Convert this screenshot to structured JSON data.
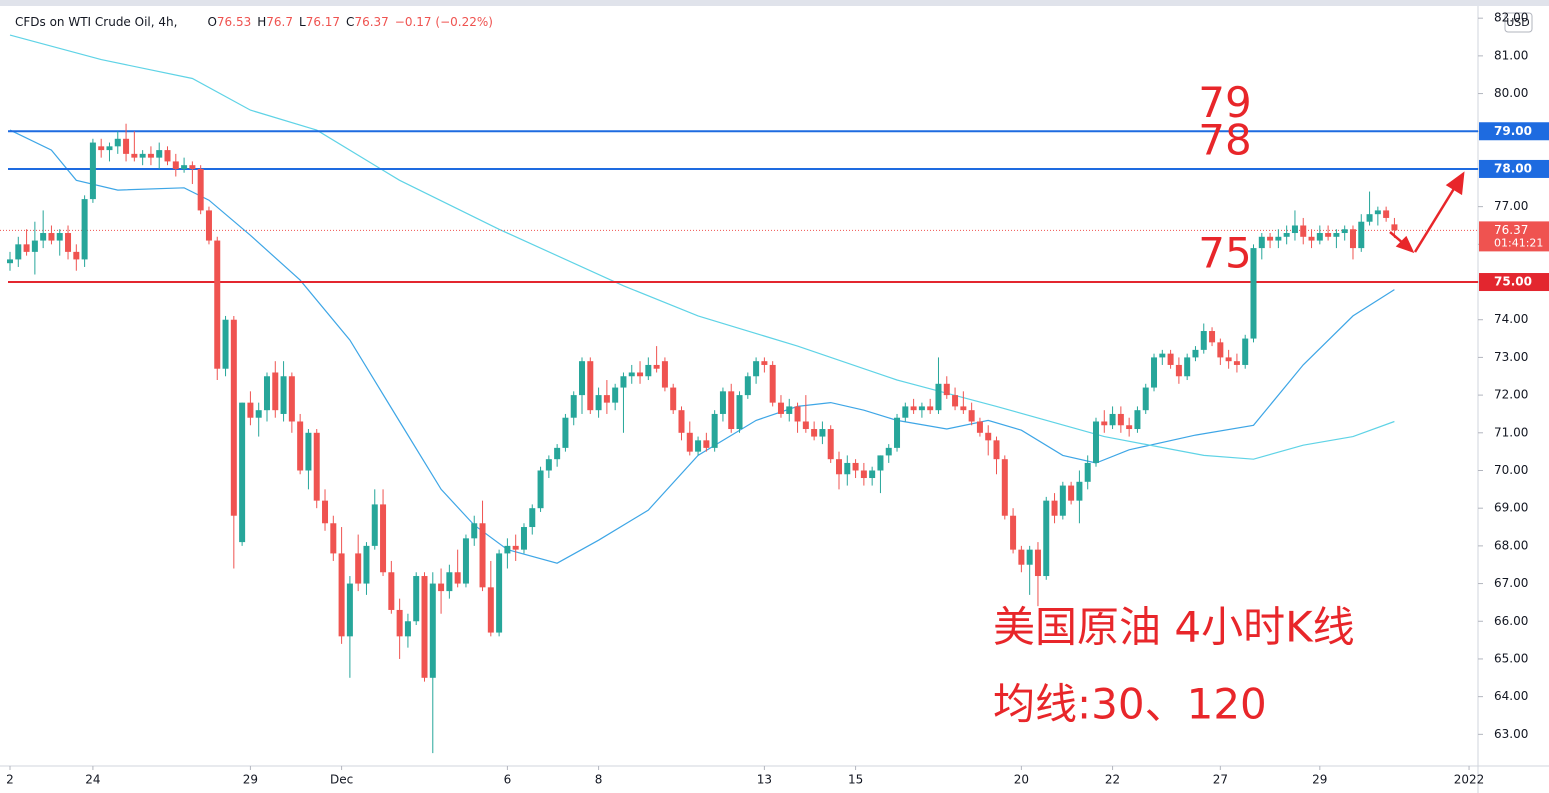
{
  "chart_data": {
    "type": "candlestick",
    "title": "CFDs on WTI Crude Oil, 4h,",
    "ohlc": [
      {
        "label": "O",
        "value": 76.53
      },
      {
        "label": "H",
        "value": 76.7
      },
      {
        "label": "L",
        "value": 76.17
      },
      {
        "label": "C",
        "value": 76.37
      }
    ],
    "change": "−0.17 (−0.22%)",
    "currency": "USD",
    "up_color": "#26a69a",
    "down_color": "#ef5350",
    "ylim": [
      62.16,
      82.27
    ],
    "yticks": [
      {
        "value": 63,
        "label": "63.00"
      },
      {
        "value": 64,
        "label": "64.00"
      },
      {
        "value": 65,
        "label": "65.00"
      },
      {
        "value": 66,
        "label": "66.00"
      },
      {
        "value": 67,
        "label": "67.00"
      },
      {
        "value": 68,
        "label": "68.00"
      },
      {
        "value": 69,
        "label": "69.00"
      },
      {
        "value": 70,
        "label": "70.00"
      },
      {
        "value": 71,
        "label": "71.00"
      },
      {
        "value": 72,
        "label": "72.00"
      },
      {
        "value": 73,
        "label": "73.00"
      },
      {
        "value": 74,
        "label": "74.00"
      },
      {
        "value": 75,
        "label": "75.00"
      },
      {
        "value": 76,
        "label": "76.00"
      },
      {
        "value": 77,
        "label": "77.00"
      },
      {
        "value": 78,
        "label": "78.00"
      },
      {
        "value": 79,
        "label": "79.00"
      },
      {
        "value": 80,
        "label": "80.00"
      },
      {
        "value": 81,
        "label": "81.00"
      },
      {
        "value": 82,
        "label": "82.00"
      }
    ],
    "xticks": [
      {
        "value": 0,
        "label": "2"
      },
      {
        "value": 10,
        "label": "24"
      },
      {
        "value": 29,
        "label": "29"
      },
      {
        "value": 40,
        "label": "Dec"
      },
      {
        "value": 60,
        "label": "6"
      },
      {
        "value": 71,
        "label": "8"
      },
      {
        "value": 91,
        "label": "13"
      },
      {
        "value": 102,
        "label": "15"
      },
      {
        "value": 122,
        "label": "20"
      },
      {
        "value": 133,
        "label": "22"
      },
      {
        "value": 146,
        "label": "27"
      },
      {
        "value": 158,
        "label": "29"
      },
      {
        "value": 176,
        "label": "2022"
      }
    ],
    "candles": [
      [
        75.5,
        75.8,
        75.3,
        75.6
      ],
      [
        75.6,
        76.2,
        75.4,
        76.0
      ],
      [
        76.0,
        76.4,
        75.7,
        75.8
      ],
      [
        75.8,
        76.6,
        75.2,
        76.1
      ],
      [
        76.1,
        76.9,
        75.9,
        76.3
      ],
      [
        76.3,
        76.5,
        76.0,
        76.1
      ],
      [
        76.1,
        76.4,
        75.7,
        76.3
      ],
      [
        76.3,
        76.5,
        75.6,
        75.8
      ],
      [
        75.8,
        76.0,
        75.3,
        75.6
      ],
      [
        75.6,
        77.3,
        75.4,
        77.2
      ],
      [
        77.2,
        78.8,
        77.1,
        78.7
      ],
      [
        78.6,
        78.8,
        78.3,
        78.5
      ],
      [
        78.5,
        78.7,
        78.2,
        78.6
      ],
      [
        78.6,
        79.0,
        78.4,
        78.8
      ],
      [
        78.8,
        79.2,
        78.2,
        78.4
      ],
      [
        78.4,
        79.0,
        78.2,
        78.3
      ],
      [
        78.3,
        78.5,
        78.1,
        78.4
      ],
      [
        78.4,
        78.6,
        78.1,
        78.3
      ],
      [
        78.3,
        78.7,
        78.0,
        78.5
      ],
      [
        78.5,
        78.6,
        78.1,
        78.2
      ],
      [
        78.2,
        78.4,
        77.8,
        78.0
      ],
      [
        78.0,
        78.3,
        77.9,
        78.1
      ],
      [
        78.1,
        78.2,
        77.6,
        78.0
      ],
      [
        78.0,
        78.1,
        76.8,
        76.9
      ],
      [
        76.9,
        77.0,
        76.0,
        76.1
      ],
      [
        76.1,
        76.2,
        72.4,
        72.7
      ],
      [
        72.7,
        74.1,
        72.5,
        74.0
      ],
      [
        74.0,
        74.1,
        67.4,
        68.8
      ],
      [
        68.1,
        71.8,
        68.0,
        71.8
      ],
      [
        71.8,
        72.1,
        71.2,
        71.4
      ],
      [
        71.4,
        71.8,
        70.9,
        71.6
      ],
      [
        71.6,
        72.6,
        71.3,
        72.5
      ],
      [
        72.6,
        72.9,
        71.4,
        71.6
      ],
      [
        71.5,
        72.9,
        71.3,
        72.5
      ],
      [
        72.5,
        72.6,
        71.0,
        71.3
      ],
      [
        71.3,
        71.5,
        69.9,
        70.0
      ],
      [
        70.0,
        71.1,
        69.5,
        71.0
      ],
      [
        71.0,
        71.1,
        69.0,
        69.2
      ],
      [
        69.2,
        69.5,
        68.4,
        68.6
      ],
      [
        68.6,
        68.8,
        67.6,
        67.8
      ],
      [
        67.8,
        68.5,
        65.4,
        65.6
      ],
      [
        65.6,
        67.2,
        64.5,
        67.0
      ],
      [
        67.8,
        68.3,
        66.8,
        67.0
      ],
      [
        67.0,
        68.1,
        66.7,
        68.0
      ],
      [
        68.0,
        69.5,
        67.9,
        69.1
      ],
      [
        69.1,
        69.5,
        67.2,
        67.3
      ],
      [
        67.3,
        67.6,
        66.2,
        66.3
      ],
      [
        66.3,
        66.6,
        65.0,
        65.6
      ],
      [
        65.6,
        66.2,
        65.3,
        66.0
      ],
      [
        66.0,
        67.3,
        65.9,
        67.2
      ],
      [
        67.2,
        67.3,
        64.4,
        64.5
      ],
      [
        64.5,
        67.3,
        62.5,
        67.0
      ],
      [
        67.0,
        67.4,
        66.2,
        66.8
      ],
      [
        66.8,
        67.5,
        66.6,
        67.3
      ],
      [
        67.3,
        67.9,
        66.9,
        67.0
      ],
      [
        67.0,
        68.3,
        66.9,
        68.2
      ],
      [
        68.2,
        68.8,
        68.0,
        68.6
      ],
      [
        68.6,
        69.2,
        66.8,
        66.9
      ],
      [
        66.9,
        67.6,
        65.6,
        65.7
      ],
      [
        65.7,
        67.9,
        65.6,
        67.8
      ],
      [
        67.8,
        68.2,
        67.4,
        68.0
      ],
      [
        68.0,
        68.3,
        67.6,
        67.9
      ],
      [
        67.9,
        68.6,
        67.8,
        68.5
      ],
      [
        68.5,
        69.1,
        68.3,
        69.0
      ],
      [
        69.0,
        70.1,
        68.9,
        70.0
      ],
      [
        70.0,
        70.4,
        69.8,
        70.3
      ],
      [
        70.3,
        70.7,
        70.1,
        70.6
      ],
      [
        70.6,
        71.5,
        70.5,
        71.4
      ],
      [
        71.4,
        72.1,
        71.2,
        72.0
      ],
      [
        72.0,
        73.0,
        71.5,
        72.9
      ],
      [
        72.9,
        73.0,
        71.5,
        71.6
      ],
      [
        71.6,
        72.2,
        71.4,
        72.0
      ],
      [
        72.0,
        72.4,
        71.5,
        71.8
      ],
      [
        71.8,
        72.3,
        71.6,
        72.2
      ],
      [
        72.2,
        72.6,
        71.0,
        72.5
      ],
      [
        72.5,
        72.8,
        72.3,
        72.6
      ],
      [
        72.6,
        72.9,
        72.3,
        72.5
      ],
      [
        72.5,
        73.0,
        72.4,
        72.8
      ],
      [
        72.8,
        73.3,
        72.6,
        72.7
      ],
      [
        72.9,
        73.0,
        72.1,
        72.2
      ],
      [
        72.2,
        72.3,
        71.5,
        71.6
      ],
      [
        71.6,
        71.7,
        70.8,
        71.0
      ],
      [
        71.0,
        71.3,
        70.4,
        70.5
      ],
      [
        70.5,
        70.9,
        70.4,
        70.8
      ],
      [
        70.8,
        71.0,
        70.5,
        70.6
      ],
      [
        70.6,
        71.6,
        70.5,
        71.5
      ],
      [
        71.5,
        72.2,
        71.3,
        72.1
      ],
      [
        72.1,
        72.3,
        71.0,
        71.1
      ],
      [
        71.1,
        72.1,
        71.0,
        72.0
      ],
      [
        72.0,
        72.6,
        71.9,
        72.5
      ],
      [
        72.5,
        73.0,
        72.3,
        72.9
      ],
      [
        72.9,
        73.0,
        72.6,
        72.8
      ],
      [
        72.8,
        72.9,
        71.7,
        71.8
      ],
      [
        71.8,
        72.0,
        71.4,
        71.5
      ],
      [
        71.5,
        71.9,
        71.3,
        71.7
      ],
      [
        71.7,
        71.8,
        71.0,
        71.3
      ],
      [
        71.3,
        72.0,
        71.0,
        71.1
      ],
      [
        71.1,
        71.3,
        70.8,
        70.9
      ],
      [
        70.9,
        71.3,
        70.7,
        71.1
      ],
      [
        71.1,
        71.2,
        70.2,
        70.3
      ],
      [
        70.3,
        70.5,
        69.5,
        69.9
      ],
      [
        69.9,
        70.4,
        69.6,
        70.2
      ],
      [
        70.2,
        70.3,
        69.8,
        70.0
      ],
      [
        70.0,
        70.2,
        69.6,
        69.8
      ],
      [
        69.8,
        70.1,
        69.6,
        70.0
      ],
      [
        70.0,
        70.4,
        69.4,
        70.4
      ],
      [
        70.4,
        70.7,
        70.2,
        70.6
      ],
      [
        70.6,
        71.5,
        70.5,
        71.4
      ],
      [
        71.4,
        71.8,
        71.3,
        71.7
      ],
      [
        71.7,
        71.9,
        71.5,
        71.6
      ],
      [
        71.6,
        71.8,
        71.4,
        71.7
      ],
      [
        71.7,
        71.9,
        71.5,
        71.6
      ],
      [
        71.6,
        73.0,
        71.5,
        72.3
      ],
      [
        72.3,
        72.5,
        71.9,
        72.0
      ],
      [
        72.0,
        72.2,
        71.6,
        71.7
      ],
      [
        71.7,
        72.1,
        71.5,
        71.6
      ],
      [
        71.6,
        71.8,
        71.2,
        71.3
      ],
      [
        71.3,
        71.4,
        70.9,
        71.0
      ],
      [
        71.0,
        71.2,
        70.4,
        70.8
      ],
      [
        70.8,
        70.9,
        69.9,
        70.3
      ],
      [
        70.3,
        70.4,
        68.7,
        68.8
      ],
      [
        68.8,
        69.0,
        67.8,
        67.9
      ],
      [
        67.9,
        68.0,
        67.3,
        67.5
      ],
      [
        67.5,
        68.0,
        66.7,
        67.9
      ],
      [
        67.9,
        68.1,
        66.4,
        67.2
      ],
      [
        67.2,
        69.3,
        67.1,
        69.2
      ],
      [
        69.2,
        69.4,
        68.6,
        68.8
      ],
      [
        68.8,
        69.7,
        68.7,
        69.6
      ],
      [
        69.6,
        69.7,
        69.1,
        69.2
      ],
      [
        69.2,
        70.0,
        68.6,
        69.7
      ],
      [
        69.7,
        70.4,
        69.5,
        70.2
      ],
      [
        70.2,
        71.4,
        70.1,
        71.3
      ],
      [
        71.3,
        71.6,
        71.0,
        71.2
      ],
      [
        71.2,
        71.7,
        71.1,
        71.5
      ],
      [
        71.5,
        71.7,
        71.0,
        71.2
      ],
      [
        71.2,
        71.4,
        70.9,
        71.1
      ],
      [
        71.1,
        71.7,
        71.0,
        71.6
      ],
      [
        71.6,
        72.3,
        71.5,
        72.2
      ],
      [
        72.2,
        73.1,
        72.1,
        73.0
      ],
      [
        73.0,
        73.2,
        72.8,
        73.1
      ],
      [
        73.1,
        73.2,
        72.7,
        72.8
      ],
      [
        72.8,
        73.0,
        72.3,
        72.5
      ],
      [
        72.5,
        73.1,
        72.4,
        73.0
      ],
      [
        73.0,
        73.3,
        72.9,
        73.2
      ],
      [
        73.2,
        73.9,
        73.1,
        73.7
      ],
      [
        73.7,
        73.8,
        73.3,
        73.4
      ],
      [
        73.4,
        73.5,
        72.8,
        73.0
      ],
      [
        73.0,
        73.2,
        72.7,
        72.9
      ],
      [
        72.9,
        73.1,
        72.6,
        72.8
      ],
      [
        72.8,
        73.6,
        72.7,
        73.5
      ],
      [
        73.5,
        76.0,
        73.4,
        75.9
      ],
      [
        75.9,
        76.3,
        75.6,
        76.2
      ],
      [
        76.2,
        76.3,
        75.9,
        76.1
      ],
      [
        76.1,
        76.4,
        75.9,
        76.2
      ],
      [
        76.2,
        76.5,
        76.0,
        76.3
      ],
      [
        76.3,
        76.9,
        76.1,
        76.5
      ],
      [
        76.5,
        76.7,
        76.0,
        76.2
      ],
      [
        76.2,
        76.4,
        75.9,
        76.1
      ],
      [
        76.1,
        76.5,
        76.0,
        76.3
      ],
      [
        76.3,
        76.5,
        76.1,
        76.2
      ],
      [
        76.2,
        76.4,
        75.9,
        76.3
      ],
      [
        76.3,
        76.5,
        76.1,
        76.4
      ],
      [
        76.4,
        76.5,
        75.6,
        75.9
      ],
      [
        75.9,
        76.8,
        75.8,
        76.6
      ],
      [
        76.6,
        77.4,
        76.5,
        76.8
      ],
      [
        76.8,
        77.0,
        76.5,
        76.9
      ],
      [
        76.9,
        77.0,
        76.6,
        76.7
      ],
      [
        76.53,
        76.7,
        76.17,
        76.37
      ]
    ],
    "series": [
      {
        "color": "#3ea6e6",
        "x": [
          0,
          5,
          8,
          13,
          21,
          24,
          29,
          35,
          41,
          47,
          52,
          56,
          60,
          66,
          71,
          77,
          83,
          90,
          95,
          99,
          103,
          107,
          113,
          118,
          122,
          127,
          131,
          135,
          143,
          150,
          156,
          162,
          167
        ],
        "values": [
          79.03,
          78.5,
          77.7,
          77.44,
          77.5,
          77.17,
          76.24,
          75.05,
          73.46,
          71.3,
          69.5,
          68.55,
          67.9,
          67.54,
          68.15,
          68.95,
          70.4,
          71.33,
          71.7,
          71.8,
          71.6,
          71.33,
          71.1,
          71.33,
          71.07,
          70.4,
          70.2,
          70.55,
          70.94,
          71.2,
          72.8,
          74.1,
          74.8
        ]
      },
      {
        "color": "#5fd3e6",
        "x": [
          0,
          11,
          22,
          29,
          37,
          47,
          59,
          74,
          83,
          95,
          107,
          119,
          132,
          144,
          150,
          156,
          162,
          167
        ],
        "values": [
          81.55,
          80.9,
          80.4,
          79.56,
          79.03,
          77.7,
          76.4,
          74.9,
          74.1,
          73.3,
          72.4,
          71.7,
          70.9,
          70.4,
          70.3,
          70.67,
          70.9,
          71.3
        ]
      }
    ],
    "levels": [
      {
        "value": 79,
        "label": "79.00",
        "color": "#1e6be0",
        "note": "79"
      },
      {
        "value": 78,
        "label": "78.00",
        "color": "#1e6be0",
        "note": "78"
      },
      {
        "value": 75,
        "label": "75.00",
        "color": "#e3262f",
        "note": "75"
      }
    ],
    "last_price": {
      "value": 76.37,
      "countdown": "01:41:21",
      "color": "#ef5350"
    },
    "annotations": [
      "美国原油 4小时K线",
      "均线:30、120"
    ]
  }
}
